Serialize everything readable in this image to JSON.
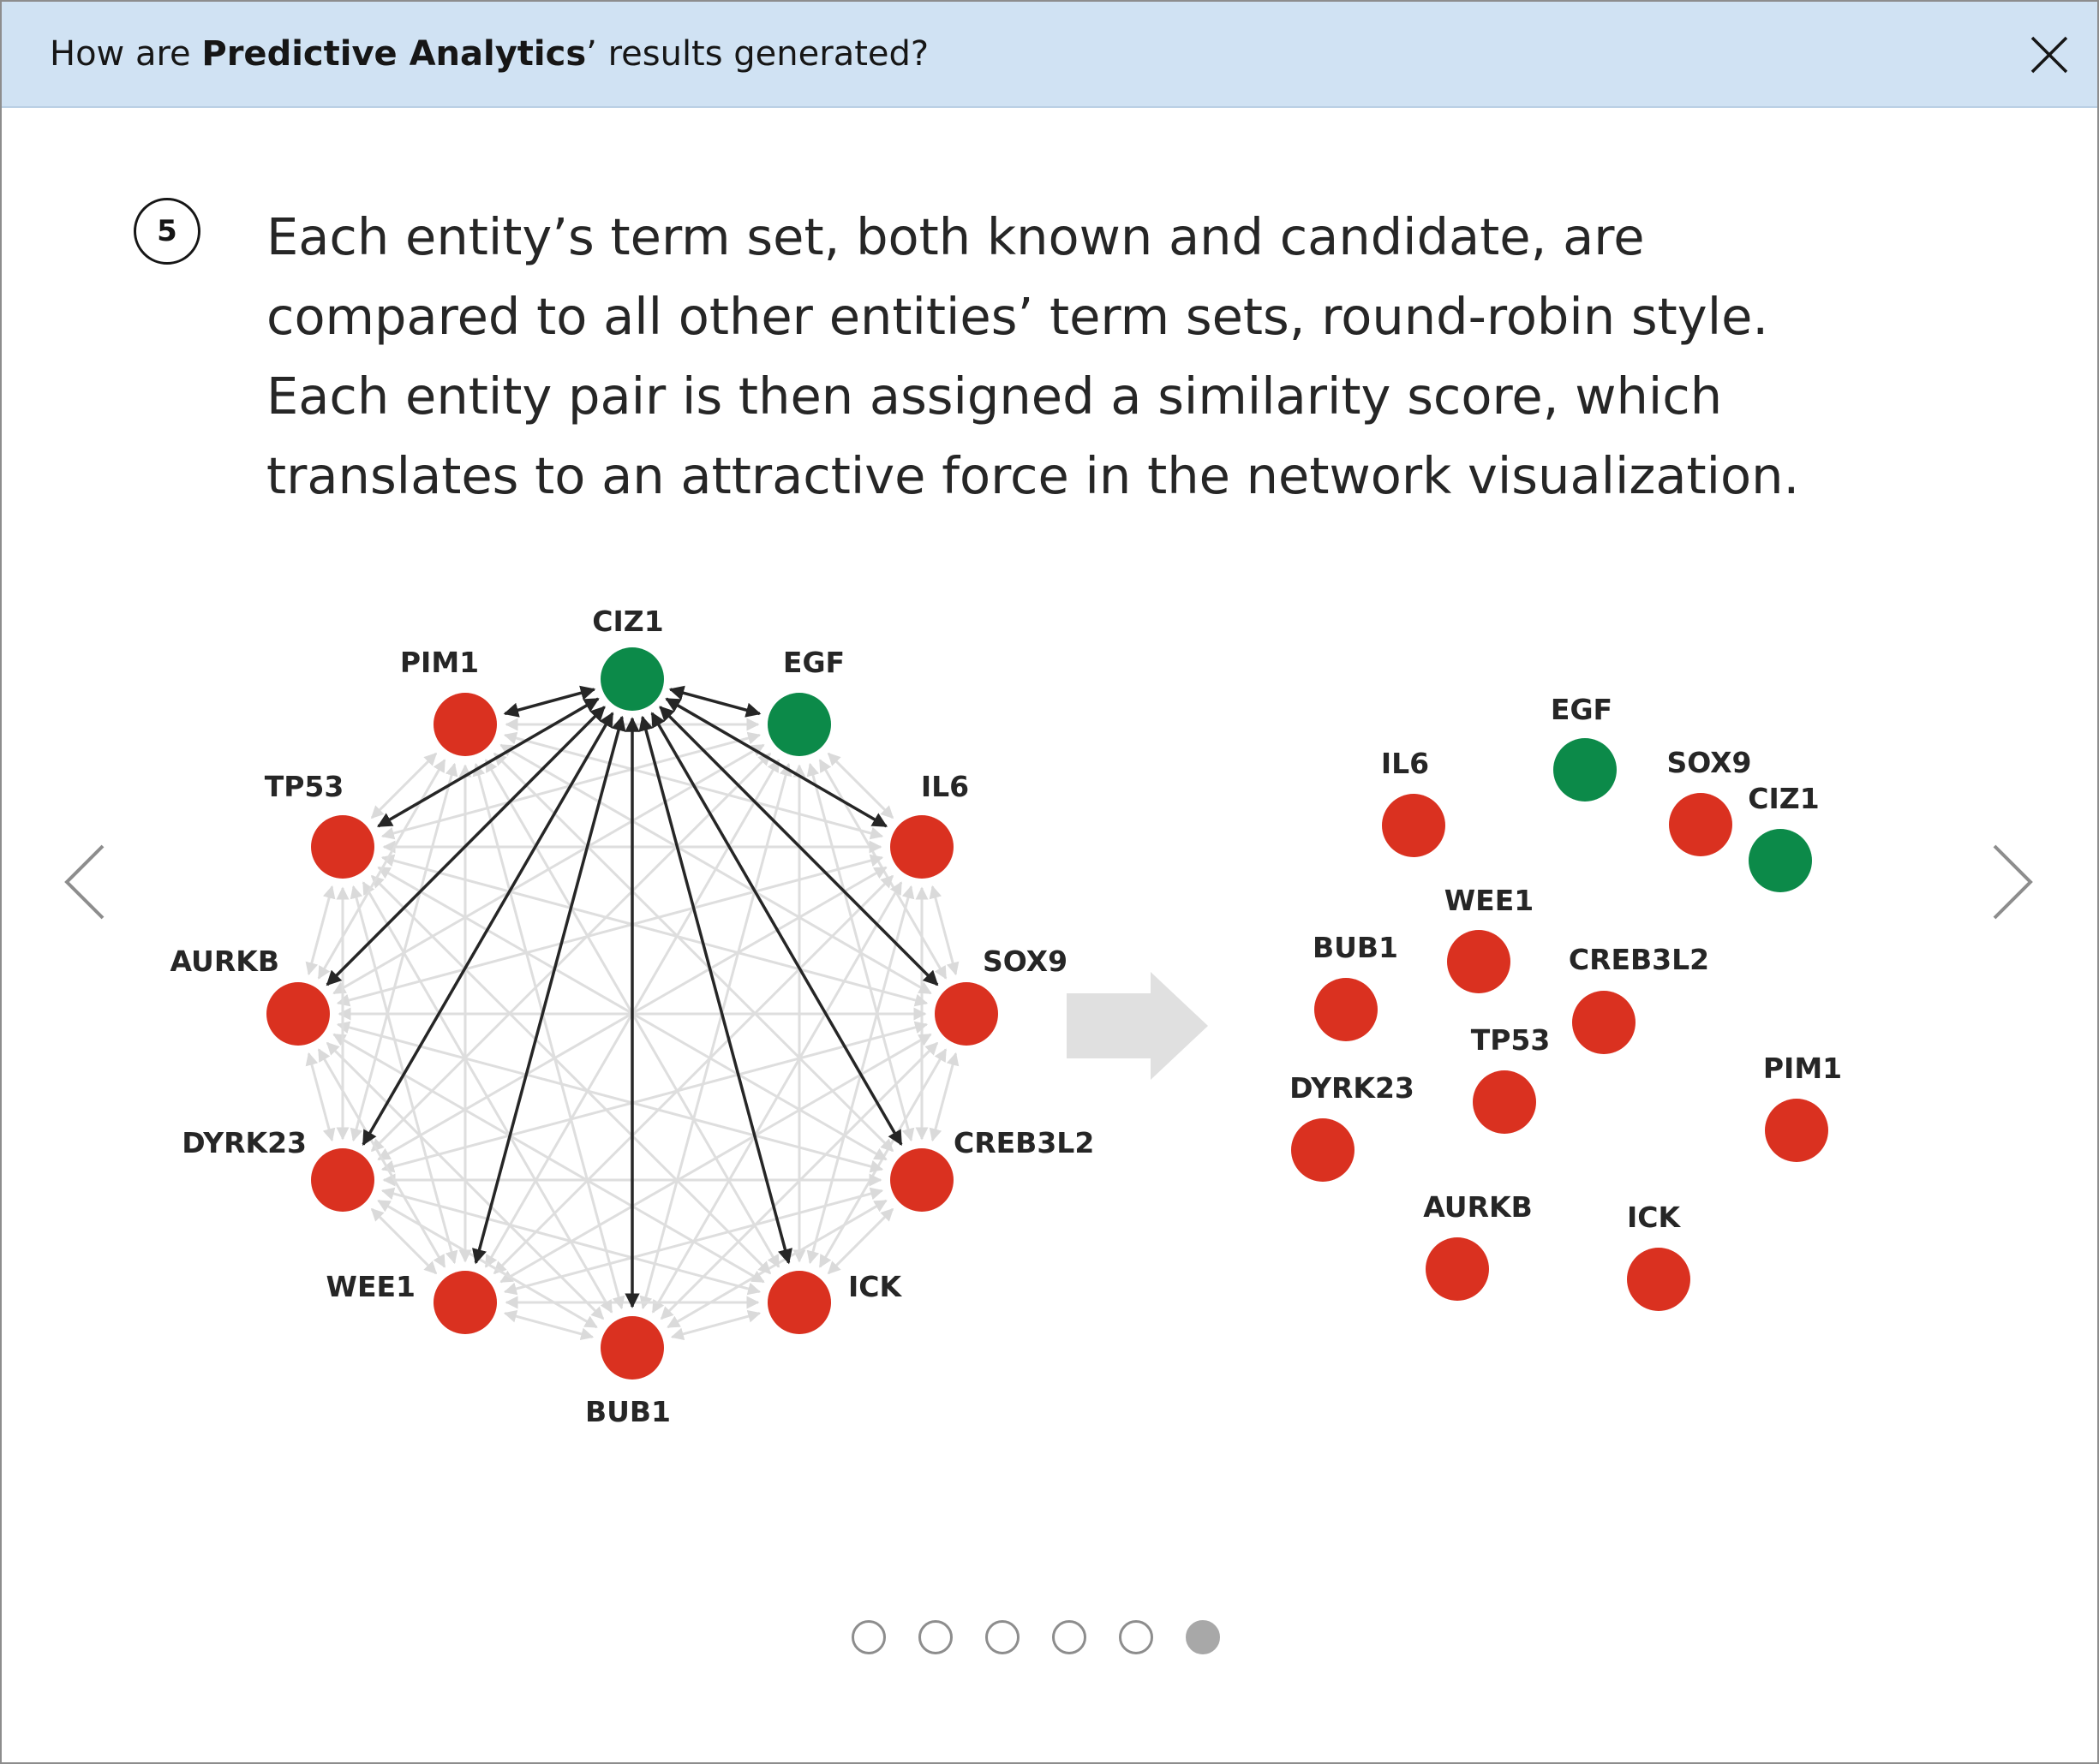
{
  "header": {
    "prefix": "How are ",
    "bold": "Predictive Analytics",
    "suffix": "’ results generated?"
  },
  "step": {
    "number": "5",
    "text": "Each entity’s term set, both known and candidate, are compared to all other entities’ term sets, round-robin style. Each entity pair is then assigned a similarity score, which translates to an attractive force in the network visualization."
  },
  "icons": {
    "close": "close-icon",
    "prev": "chevron-left-icon",
    "next": "chevron-right-icon",
    "transition": "arrow-right-icon"
  },
  "colors": {
    "known": "#da3120",
    "candidate": "#0c8a49",
    "highlight_edge": "#262626",
    "background_edge": "#dedede",
    "transition_arrow": "#e0e0e0"
  },
  "legend_semantics": {
    "candidate_color_entities": [
      "CIZ1",
      "EGF"
    ]
  },
  "ring_network": {
    "hub": "CIZ1",
    "nodes": [
      {
        "label": "CIZ1",
        "color": "green"
      },
      {
        "label": "EGF",
        "color": "green"
      },
      {
        "label": "IL6",
        "color": "red"
      },
      {
        "label": "SOX9",
        "color": "red"
      },
      {
        "label": "CREB3L2",
        "color": "red"
      },
      {
        "label": "ICK",
        "color": "red"
      },
      {
        "label": "BUB1",
        "color": "red"
      },
      {
        "label": "WEE1",
        "color": "red"
      },
      {
        "label": "DYRK23",
        "color": "red"
      },
      {
        "label": "AURKB",
        "color": "red"
      },
      {
        "label": "TP53",
        "color": "red"
      },
      {
        "label": "PIM1",
        "color": "red"
      }
    ]
  },
  "clustered_network": {
    "nodes": [
      {
        "label": "EGF",
        "color": "green"
      },
      {
        "label": "IL6",
        "color": "red"
      },
      {
        "label": "SOX9",
        "color": "red"
      },
      {
        "label": "CIZ1",
        "color": "green"
      },
      {
        "label": "WEE1",
        "color": "red"
      },
      {
        "label": "BUB1",
        "color": "red"
      },
      {
        "label": "CREB3L2",
        "color": "red"
      },
      {
        "label": "TP53",
        "color": "red"
      },
      {
        "label": "PIM1",
        "color": "red"
      },
      {
        "label": "DYRK23",
        "color": "red"
      },
      {
        "label": "AURKB",
        "color": "red"
      },
      {
        "label": "ICK",
        "color": "red"
      }
    ]
  },
  "pagination": {
    "total": 6,
    "current": 6
  }
}
